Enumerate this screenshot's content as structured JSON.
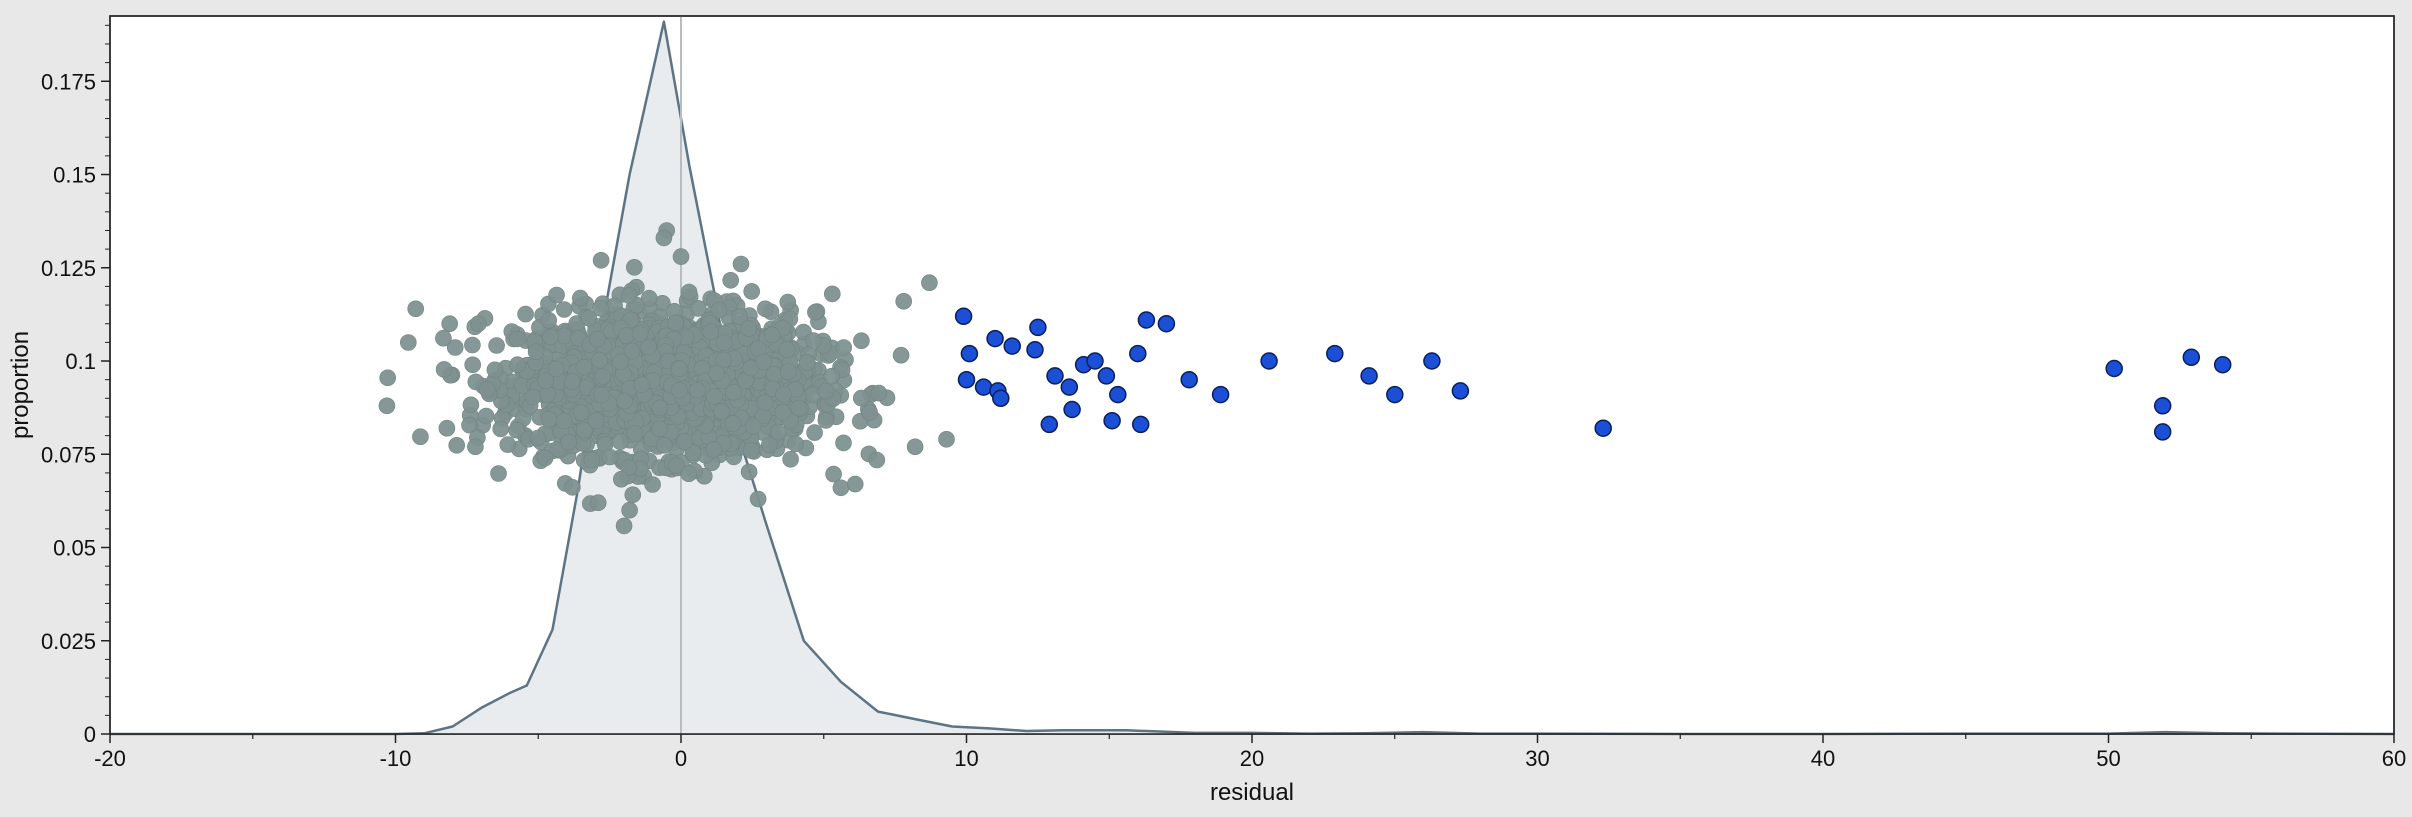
{
  "chart_data": {
    "type": "scatter",
    "xlabel": "residual",
    "ylabel": "proportion",
    "xlim": [
      -20,
      60
    ],
    "ylim": [
      0,
      0.1925
    ],
    "x_ticks": [
      -20,
      -10,
      0,
      10,
      20,
      30,
      40,
      50,
      60
    ],
    "x_tick_labels": [
      "-20",
      "-10",
      "0",
      "10",
      "20",
      "30",
      "40",
      "50",
      "60"
    ],
    "y_ticks": [
      0,
      0.025,
      0.05,
      0.075,
      0.1,
      0.125,
      0.15,
      0.175
    ],
    "y_tick_labels": [
      "0",
      "0.025",
      "0.05",
      "0.075",
      "0.1",
      "0.125",
      "0.15",
      "0.175"
    ],
    "grid": false,
    "legend": "none",
    "reference_line_x": 0,
    "colors": {
      "density_fill": "#e8ecef",
      "density_line": "#5e7484",
      "inlier_point": "#7e9190",
      "outlier_point": "#1a4fd6",
      "outlier_edge": "#0b1f5c",
      "reference_line": "#b8bcc0",
      "plot_background": "#ffffff",
      "page_background": "#e8e8e8"
    },
    "density_curve": {
      "x": [
        -20,
        -15,
        -10,
        -9,
        -8,
        -7,
        -6,
        -5.4,
        -4.5,
        -3.6,
        -2.7,
        -1.8,
        -0.6,
        0.3,
        1.2,
        2.1,
        3,
        4.3,
        5.6,
        6.9,
        8.2,
        9.5,
        10.8,
        12.1,
        13.4,
        15.6,
        18,
        20,
        22,
        24,
        26,
        28,
        30,
        35,
        40,
        45,
        50,
        52,
        54,
        56,
        60
      ],
      "y": [
        0,
        0,
        0,
        0.0002,
        0.002,
        0.007,
        0.011,
        0.013,
        0.028,
        0.066,
        0.112,
        0.15,
        0.191,
        0.152,
        0.117,
        0.078,
        0.056,
        0.025,
        0.014,
        0.006,
        0.004,
        0.002,
        0.0015,
        0.0008,
        0.001,
        0.001,
        0.0003,
        0.0003,
        0.0001,
        0.0002,
        0.0005,
        0.0001,
        0.0001,
        0,
        0,
        0.0001,
        0.0001,
        0.0005,
        0.0002,
        0.0001,
        0
      ]
    },
    "inlier_cloud": {
      "n_points": 1900,
      "x_range": [
        -10.5,
        9
      ],
      "x_center": -0.5,
      "y_center": 0.094,
      "notable_points": [
        {
          "x": -10.3,
          "y": 0.088
        },
        {
          "x": -8.2,
          "y": 0.082
        },
        {
          "x": -7.2,
          "y": 0.077
        },
        {
          "x": -8.1,
          "y": 0.11
        },
        {
          "x": -7.1,
          "y": 0.11
        },
        {
          "x": -2.8,
          "y": 0.127
        },
        {
          "x": -0.5,
          "y": 0.135
        },
        {
          "x": -0.6,
          "y": 0.133
        },
        {
          "x": 0,
          "y": 0.128
        },
        {
          "x": 2.1,
          "y": 0.126
        },
        {
          "x": -2.9,
          "y": 0.062
        },
        {
          "x": -1.8,
          "y": 0.06
        },
        {
          "x": 2.7,
          "y": 0.063
        },
        {
          "x": 5.6,
          "y": 0.066
        },
        {
          "x": 6.1,
          "y": 0.067
        },
        {
          "x": 8.7,
          "y": 0.121
        },
        {
          "x": 8.2,
          "y": 0.077
        },
        {
          "x": 9.3,
          "y": 0.079
        },
        {
          "x": 5.3,
          "y": 0.118
        },
        {
          "x": 7.8,
          "y": 0.116
        }
      ]
    },
    "outliers": [
      {
        "x": 9.9,
        "y": 0.112
      },
      {
        "x": 10.1,
        "y": 0.102
      },
      {
        "x": 10.0,
        "y": 0.095
      },
      {
        "x": 10.6,
        "y": 0.093
      },
      {
        "x": 11.0,
        "y": 0.106
      },
      {
        "x": 11.1,
        "y": 0.092
      },
      {
        "x": 11.2,
        "y": 0.09
      },
      {
        "x": 11.6,
        "y": 0.104
      },
      {
        "x": 12.4,
        "y": 0.103
      },
      {
        "x": 12.5,
        "y": 0.109
      },
      {
        "x": 12.9,
        "y": 0.083
      },
      {
        "x": 13.1,
        "y": 0.096
      },
      {
        "x": 13.6,
        "y": 0.093
      },
      {
        "x": 13.7,
        "y": 0.087
      },
      {
        "x": 14.1,
        "y": 0.099
      },
      {
        "x": 14.5,
        "y": 0.1
      },
      {
        "x": 14.9,
        "y": 0.096
      },
      {
        "x": 15.1,
        "y": 0.084
      },
      {
        "x": 15.3,
        "y": 0.091
      },
      {
        "x": 16.0,
        "y": 0.102
      },
      {
        "x": 16.1,
        "y": 0.083
      },
      {
        "x": 16.3,
        "y": 0.111
      },
      {
        "x": 17.0,
        "y": 0.11
      },
      {
        "x": 17.8,
        "y": 0.095
      },
      {
        "x": 18.9,
        "y": 0.091
      },
      {
        "x": 20.6,
        "y": 0.1
      },
      {
        "x": 22.9,
        "y": 0.102
      },
      {
        "x": 24.1,
        "y": 0.096
      },
      {
        "x": 25.0,
        "y": 0.091
      },
      {
        "x": 26.3,
        "y": 0.1
      },
      {
        "x": 27.3,
        "y": 0.092
      },
      {
        "x": 32.3,
        "y": 0.082
      },
      {
        "x": 50.2,
        "y": 0.098
      },
      {
        "x": 51.9,
        "y": 0.088
      },
      {
        "x": 51.9,
        "y": 0.081
      },
      {
        "x": 52.9,
        "y": 0.101
      },
      {
        "x": 54.0,
        "y": 0.099
      }
    ]
  }
}
